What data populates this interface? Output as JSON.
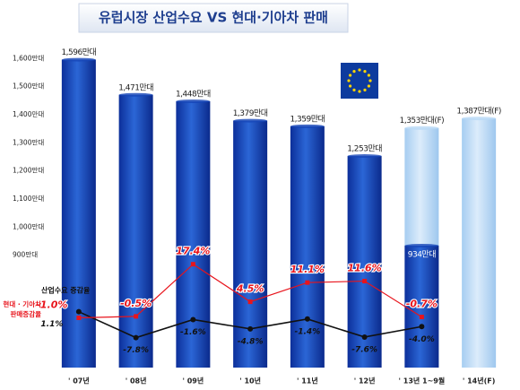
{
  "chart_data": {
    "type": "bar",
    "title": "유럽시장 산업수요 VS 현대·기아차 판매",
    "categories": [
      "' 07년",
      "' 08년",
      "' 09년",
      "' 10년",
      "' 11년",
      "' 12년",
      "' 13년 1~9월",
      "' 14년(F)"
    ],
    "series": [
      {
        "name": "산업수요 (F)",
        "color": "#b9d9f6",
        "values": [
          null,
          null,
          null,
          null,
          null,
          null,
          1353,
          1387
        ],
        "value_labels": [
          null,
          null,
          null,
          null,
          null,
          null,
          "1,353만대(F)",
          "1,387만대(F)"
        ]
      },
      {
        "name": "산업수요",
        "color": "#1746b8",
        "values": [
          1596,
          1471,
          1448,
          1379,
          1359,
          1253,
          934,
          null
        ],
        "value_labels": [
          "1,596만대",
          "1,471만대",
          "1,448만대",
          "1,379만대",
          "1,359만대",
          "1,253만대",
          "934만대",
          null
        ]
      },
      {
        "name": "산업수요 증감율",
        "type": "line",
        "axis": "y2",
        "color": "#111111",
        "values": [
          1.1,
          -7.8,
          -1.6,
          -4.8,
          -1.4,
          -7.6,
          -4.0,
          null
        ],
        "value_labels": [
          "1.1%",
          "-7.8%",
          "-1.6%",
          "-4.8%",
          "-1.4%",
          "-7.6%",
          "-4.0%",
          null
        ]
      },
      {
        "name": "현대 · 기아차 판매증감율",
        "type": "line",
        "axis": "y2",
        "color": "#e8141c",
        "values": [
          -1.0,
          -0.5,
          17.4,
          4.5,
          11.1,
          11.6,
          -0.7,
          null
        ],
        "value_labels": [
          "-1.0%",
          "-0.5%",
          "17.4%",
          "4.5%",
          "11.1%",
          "11.6%",
          "-0.7%",
          null
        ]
      }
    ],
    "ylim": [
      500,
      1700
    ],
    "yticks": [
      {
        "value": 1600,
        "label": "1,600만대"
      },
      {
        "value": 1500,
        "label": "1,500만대"
      },
      {
        "value": 1400,
        "label": "1,400만대"
      },
      {
        "value": 1300,
        "label": "1,300만대"
      },
      {
        "value": 1200,
        "label": "1,200만대"
      },
      {
        "value": 1100,
        "label": "1,100만대"
      },
      {
        "value": 1000,
        "label": "1,000만대"
      },
      {
        "value": 900,
        "label": "900만대"
      }
    ],
    "y2lim": [
      -15,
      25
    ]
  }
}
